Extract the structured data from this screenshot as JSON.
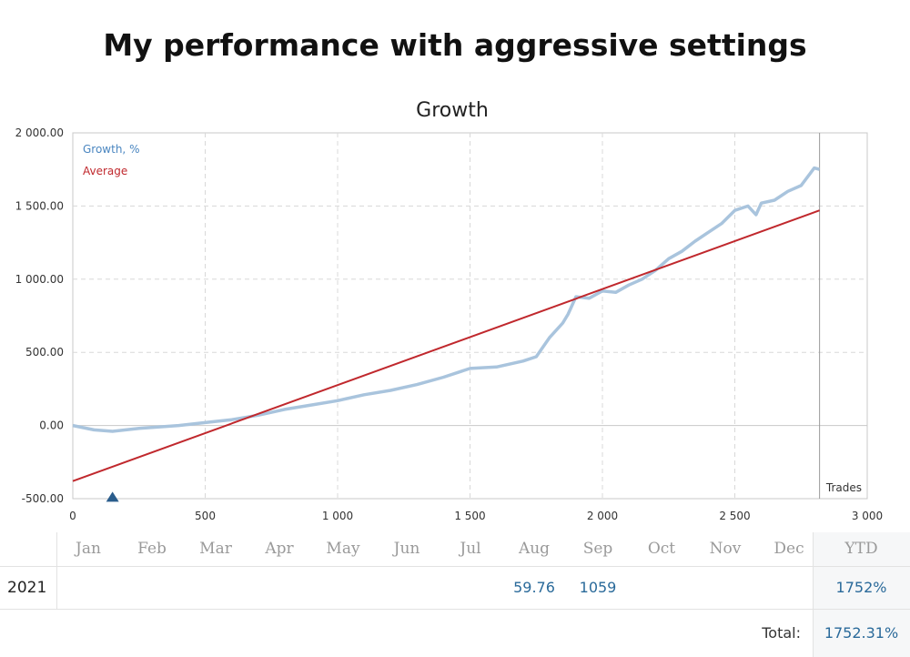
{
  "page": {
    "title": "My performance with aggressive settings"
  },
  "chart_data": {
    "type": "line",
    "title": "Growth",
    "xlabel": "Trades",
    "ylabel": "",
    "xlim": [
      0,
      3000
    ],
    "ylim": [
      -500,
      2000
    ],
    "x_ticks": [
      0,
      500,
      1000,
      1500,
      2000,
      2500,
      3000
    ],
    "x_tick_labels": [
      "0",
      "500",
      "1 000",
      "1 500",
      "2 000",
      "2 500",
      "3 000"
    ],
    "y_ticks": [
      -500,
      0,
      500,
      1000,
      1500,
      2000
    ],
    "y_tick_labels": [
      "-500.00",
      "0.00",
      "500.00",
      "1 000.00",
      "1 500.00",
      "2 000.00"
    ],
    "grid": true,
    "legend": "top-left",
    "series": [
      {
        "name": "Growth, %",
        "color": "#a9c4dd",
        "x": [
          0,
          80,
          150,
          250,
          400,
          500,
          600,
          700,
          800,
          900,
          1000,
          1100,
          1200,
          1300,
          1400,
          1500,
          1600,
          1700,
          1750,
          1800,
          1850,
          1870,
          1900,
          1950,
          2000,
          2050,
          2100,
          2150,
          2200,
          2250,
          2300,
          2350,
          2400,
          2450,
          2500,
          2550,
          2580,
          2600,
          2650,
          2700,
          2750,
          2800,
          2820
        ],
        "values": [
          0,
          -30,
          -40,
          -20,
          0,
          20,
          40,
          70,
          110,
          140,
          170,
          210,
          240,
          280,
          330,
          390,
          400,
          440,
          470,
          600,
          700,
          760,
          880,
          870,
          920,
          910,
          960,
          1000,
          1060,
          1140,
          1190,
          1260,
          1320,
          1380,
          1470,
          1500,
          1440,
          1520,
          1540,
          1600,
          1640,
          1760,
          1750
        ]
      },
      {
        "name": "Average",
        "color": "#c0282d",
        "x": [
          0,
          2820
        ],
        "values": [
          -380,
          1470
        ]
      }
    ],
    "markers": [
      {
        "x": 150,
        "y": -490,
        "shape": "triangle",
        "color": "#2a5d8c"
      }
    ],
    "cursor_x": 2820
  },
  "table": {
    "months": [
      "Jan",
      "Feb",
      "Mar",
      "Apr",
      "May",
      "Jun",
      "Jul",
      "Aug",
      "Sep",
      "Oct",
      "Nov",
      "Dec"
    ],
    "ytd_label": "YTD",
    "year": "2021",
    "values": [
      "",
      "",
      "",
      "",
      "",
      "",
      "",
      "59.76",
      "1059",
      "",
      "",
      ""
    ],
    "ytd_value": "1752%",
    "total_label": "Total:",
    "total_value": "1752.31%"
  }
}
